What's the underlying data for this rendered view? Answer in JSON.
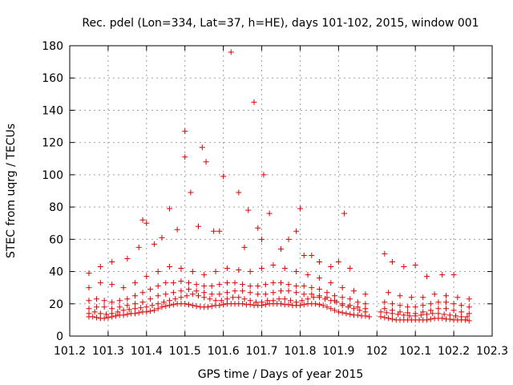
{
  "chart_data": {
    "type": "scatter",
    "title": "Rec. pdel (Lon=334, Lat=37, h=HE), days 101-102, 2015, window 001",
    "xlabel": "GPS time / Days of year 2015",
    "ylabel": "STEC from uqrg / TECUs",
    "xlim": [
      101.2,
      102.3
    ],
    "ylim": [
      0,
      180
    ],
    "x_ticks": [
      101.2,
      101.3,
      101.4,
      101.5,
      101.6,
      101.7,
      101.8,
      101.9,
      102,
      102.1,
      102.2,
      102.3
    ],
    "x_tick_labels": [
      "101.2",
      "101.3",
      "101.4",
      "101.5",
      "101.6",
      "101.7",
      "101.8",
      "101.9",
      "102",
      "102.1",
      "102.2",
      "102.3"
    ],
    "y_ticks": [
      0,
      20,
      40,
      60,
      80,
      100,
      120,
      140,
      160,
      180
    ],
    "y_tick_labels": [
      "0",
      "20",
      "40",
      "60",
      "80",
      "100",
      "120",
      "140",
      "160",
      "180"
    ],
    "grid": true,
    "marker": "plus",
    "color": "#e00000",
    "series": [
      {
        "x": [
          101.25,
          101.26,
          101.27,
          101.28,
          101.29,
          101.3,
          101.31,
          101.32,
          101.33,
          101.34,
          101.35,
          101.36,
          101.37,
          101.38,
          101.39,
          101.4,
          101.41,
          101.42,
          101.43,
          101.44,
          101.45,
          101.46,
          101.47,
          101.48,
          101.49,
          101.5,
          101.51,
          101.52,
          101.53,
          101.54,
          101.55,
          101.56,
          101.57,
          101.58,
          101.59,
          101.6,
          101.61,
          101.62,
          101.63,
          101.64,
          101.65,
          101.66,
          101.67,
          101.68,
          101.69,
          101.7,
          101.71,
          101.72,
          101.73,
          101.74,
          101.75,
          101.76,
          101.77,
          101.78,
          101.79,
          101.8,
          101.81,
          101.82,
          101.83,
          101.84,
          101.85,
          101.86,
          101.87,
          101.88,
          101.89,
          101.9,
          101.91,
          101.92,
          101.93,
          101.94,
          101.95,
          101.96,
          101.97,
          101.98,
          102.01,
          102.02,
          102.03,
          102.04,
          102.05,
          102.06,
          102.07,
          102.08,
          102.09,
          102.1,
          102.11,
          102.12,
          102.13,
          102.14,
          102.15,
          102.16,
          102.17,
          102.18,
          102.19,
          102.2,
          102.21,
          102.22,
          102.23,
          102.24
        ],
        "y": [
          12,
          12,
          11.5,
          11,
          11,
          11.5,
          12,
          12.5,
          13,
          13,
          13.5,
          14,
          14,
          14.5,
          15,
          15,
          15.5,
          16,
          17,
          18,
          18.5,
          19,
          19.5,
          20,
          20,
          20,
          19.5,
          19,
          18.5,
          18,
          18,
          18,
          18.5,
          19,
          19,
          19.5,
          20,
          20,
          20,
          20,
          20,
          19.5,
          19.5,
          19,
          19,
          19,
          19.5,
          20,
          20,
          20,
          20,
          19.5,
          19.5,
          19,
          19,
          19,
          19.5,
          20,
          20,
          20,
          19.5,
          19,
          18,
          17,
          16,
          15,
          14.5,
          14,
          13.5,
          13,
          13,
          12.5,
          12.5,
          12,
          12,
          11.5,
          11,
          10.5,
          10,
          10,
          10,
          10,
          10,
          10,
          10,
          10,
          10,
          10.5,
          11,
          11,
          11,
          10.5,
          10.5,
          10,
          10,
          10,
          10,
          9.5
        ]
      },
      {
        "x": [
          101.25,
          101.265,
          101.28,
          101.295,
          101.31,
          101.325,
          101.34,
          101.355,
          101.37,
          101.385,
          101.4,
          101.415,
          101.43,
          101.445,
          101.46,
          101.475,
          101.49,
          101.505,
          101.52,
          101.535,
          101.55,
          101.565,
          101.58,
          101.595,
          101.61,
          101.625,
          101.64,
          101.655,
          101.67,
          101.685,
          101.7,
          101.715,
          101.73,
          101.745,
          101.76,
          101.775,
          101.79,
          101.805,
          101.82,
          101.835,
          101.85,
          101.865,
          101.88,
          101.895,
          101.91,
          101.925,
          101.94,
          101.955,
          101.97,
          102.01,
          102.025,
          102.04,
          102.055,
          102.07,
          102.085,
          102.1,
          102.115,
          102.13,
          102.145,
          102.16,
          102.175,
          102.19,
          102.205,
          102.22,
          102.235
        ],
        "y": [
          14,
          15,
          14,
          13.5,
          14,
          15,
          16,
          16.5,
          17,
          17.5,
          18,
          19,
          20,
          21,
          22,
          23,
          24,
          25,
          26,
          25,
          24,
          23,
          22,
          22,
          23,
          24,
          24,
          23,
          22,
          21,
          21,
          22,
          22,
          23,
          23,
          22,
          21,
          22,
          23,
          24,
          24,
          23,
          22,
          21,
          19,
          18,
          17,
          16,
          15,
          15,
          14.5,
          14,
          13.5,
          13,
          12.5,
          12.5,
          13,
          13.5,
          14,
          14,
          13.5,
          13,
          12.5,
          12,
          12
        ]
      },
      {
        "x": [
          101.25,
          101.27,
          101.29,
          101.31,
          101.33,
          101.35,
          101.37,
          101.39,
          101.41,
          101.43,
          101.45,
          101.47,
          101.49,
          101.51,
          101.53,
          101.55,
          101.57,
          101.59,
          101.61,
          101.63,
          101.65,
          101.67,
          101.69,
          101.71,
          101.73,
          101.75,
          101.77,
          101.79,
          101.81,
          101.83,
          101.85,
          101.87,
          101.89,
          101.91,
          101.93,
          101.95,
          101.97,
          102.02,
          102.04,
          102.06,
          102.08,
          102.1,
          102.12,
          102.14,
          102.16,
          102.18,
          102.2,
          102.22,
          102.24
        ],
        "y": [
          17,
          18,
          18,
          17,
          18,
          19,
          20,
          21,
          23,
          25,
          26,
          27,
          28,
          29,
          28,
          27,
          26,
          26,
          27,
          28,
          28,
          27,
          26,
          26,
          27,
          28,
          28,
          27,
          26,
          26,
          25,
          24,
          22,
          20,
          19,
          18,
          17,
          17,
          16,
          15,
          14.5,
          14,
          15,
          16,
          17,
          17,
          16,
          15,
          14
        ]
      },
      {
        "x": [
          101.25,
          101.27,
          101.29,
          101.31,
          101.33,
          101.35,
          101.37,
          101.39,
          101.41,
          101.43,
          101.45,
          101.47,
          101.49,
          101.51,
          101.53,
          101.55,
          101.57,
          101.59,
          101.61,
          101.63,
          101.65,
          101.67,
          101.69,
          101.71,
          101.73,
          101.75,
          101.77,
          101.79,
          101.81,
          101.83,
          101.85,
          101.87,
          101.89,
          101.91,
          101.93,
          101.95,
          101.97,
          102.02,
          102.04,
          102.06,
          102.08,
          102.1,
          102.12,
          102.14,
          102.16,
          102.18,
          102.2,
          102.22,
          102.24
        ],
        "y": [
          22,
          23,
          22,
          21,
          22,
          23,
          25,
          27,
          29,
          31,
          33,
          33,
          34,
          33,
          32,
          31,
          31,
          32,
          33,
          33,
          32,
          31,
          31,
          32,
          33,
          33,
          32,
          31,
          31,
          30,
          29,
          27,
          25,
          24,
          23,
          21,
          20,
          21,
          20,
          19,
          18,
          18,
          19,
          20,
          21,
          21,
          20,
          19,
          18
        ]
      },
      {
        "x": [
          101.25,
          101.28,
          101.31,
          101.34,
          101.37,
          101.4,
          101.43,
          101.46,
          101.49,
          101.52,
          101.55,
          101.58,
          101.61,
          101.64,
          101.67,
          101.7,
          101.73,
          101.76,
          101.79,
          101.82,
          101.85,
          101.88,
          101.91,
          101.94,
          101.97,
          102.03,
          102.06,
          102.09,
          102.12,
          102.15,
          102.18,
          102.21,
          102.24
        ],
        "y": [
          30,
          33,
          32,
          30,
          33,
          37,
          40,
          43,
          42,
          40,
          38,
          40,
          42,
          41,
          40,
          42,
          44,
          42,
          40,
          38,
          36,
          33,
          30,
          28,
          26,
          27,
          25,
          24,
          24,
          26,
          25,
          24,
          23
        ]
      },
      {
        "x": [
          101.25,
          101.28,
          101.31,
          101.35,
          101.38,
          101.39,
          101.4,
          101.42,
          101.44,
          101.46,
          101.48,
          101.5,
          101.5,
          101.515,
          101.535,
          101.545,
          101.555,
          101.575,
          101.59,
          101.6,
          101.62,
          101.64,
          101.655,
          101.665,
          101.68,
          101.69,
          101.7,
          101.705,
          101.72,
          101.75,
          101.77,
          101.79,
          101.8,
          101.81,
          101.83,
          101.85,
          101.88,
          101.9,
          101.915,
          101.93,
          102.02,
          102.04,
          102.07,
          102.1,
          102.13,
          102.17,
          102.2
        ],
        "y": [
          39,
          43,
          46,
          48,
          55,
          72,
          70,
          57,
          61,
          79,
          66,
          127,
          111,
          89,
          68,
          117,
          108,
          65,
          65,
          99,
          176,
          89,
          55,
          78,
          145,
          67,
          60,
          100,
          76,
          54,
          60,
          65,
          79,
          50,
          50,
          46,
          43,
          46,
          76,
          42,
          51,
          46,
          43,
          44,
          37,
          38,
          38
        ]
      }
    ]
  }
}
